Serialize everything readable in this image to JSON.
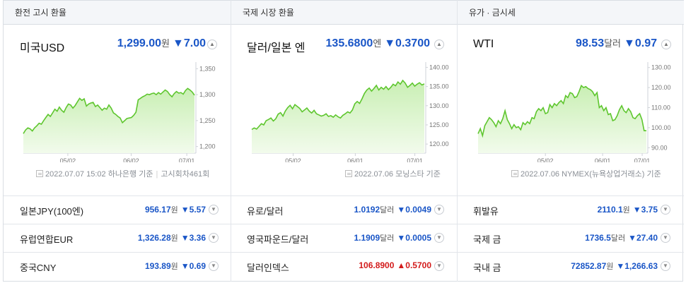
{
  "tabs": [
    "환전 고시 환율",
    "국제 시장 환율",
    "유가 · 금시세"
  ],
  "panels": [
    {
      "title": "미국USD",
      "value": "1,299.00",
      "unit": "원",
      "change": "▼7.00",
      "y_ticks": [
        "1,350",
        "1,300",
        "1,250",
        "1,200"
      ],
      "x_ticks": [
        "05/02",
        "06/02",
        "07/01"
      ],
      "footer_date": "2022.07.07 15:02 하나은행 기준",
      "footer_extra": "고시회차461회",
      "line_color": "#5ec62e",
      "chart_data": {
        "type": "area",
        "ylim": [
          1190,
          1360
        ],
        "values": [
          1225,
          1232,
          1236,
          1234,
          1230,
          1236,
          1240,
          1245,
          1243,
          1250,
          1256,
          1262,
          1258,
          1265,
          1272,
          1268,
          1276,
          1270,
          1266,
          1275,
          1282,
          1280,
          1274,
          1279,
          1286,
          1293,
          1289,
          1292,
          1278,
          1282,
          1284,
          1285,
          1277,
          1280,
          1275,
          1270,
          1274,
          1272,
          1280,
          1274,
          1265,
          1262,
          1258,
          1255,
          1246,
          1250,
          1254,
          1255,
          1256,
          1260,
          1266,
          1290,
          1293,
          1296,
          1298,
          1301,
          1300,
          1302,
          1303,
          1300,
          1304,
          1301,
          1305,
          1309,
          1306,
          1300,
          1296,
          1302,
          1306,
          1303,
          1304,
          1301,
          1308,
          1312,
          1309,
          1305,
          1299
        ]
      }
    },
    {
      "title": "달러/일본 엔",
      "value": "135.6800",
      "unit": "엔",
      "change": "▼0.3700",
      "y_ticks": [
        "140.00",
        "135.00",
        "130.00",
        "125.00",
        "120.00"
      ],
      "x_ticks": [
        "05/02",
        "06/01",
        "07/01"
      ],
      "footer_date": "2022.07.06 모닝스타 기준",
      "footer_extra": "",
      "line_color": "#5ec62e",
      "chart_data": {
        "type": "area",
        "ylim": [
          118,
          141
        ],
        "values": [
          123.8,
          124.2,
          123.9,
          124.6,
          125.3,
          125.0,
          126.1,
          126.4,
          126.8,
          126.0,
          126.6,
          127.8,
          128.2,
          127.3,
          128.6,
          129.5,
          130.1,
          129.2,
          130.3,
          129.8,
          129.3,
          128.4,
          128.9,
          129.4,
          128.6,
          128.1,
          128.8,
          127.9,
          127.6,
          127.3,
          127.5,
          127.9,
          127.2,
          127.4,
          127.0,
          127.6,
          127.1,
          126.8,
          127.5,
          127.9,
          128.4,
          128.1,
          128.9,
          130.5,
          131.1,
          130.6,
          131.8,
          133.2,
          134.1,
          134.6,
          133.8,
          134.5,
          135.3,
          134.1,
          134.8,
          134.3,
          135.0,
          134.2,
          134.8,
          135.6,
          135.2,
          136.2,
          135.6,
          136.6,
          135.9,
          134.8,
          135.3,
          135.9,
          135.1,
          135.6,
          136.0,
          135.4,
          135.7
        ]
      }
    },
    {
      "title": "WTI",
      "value": "98.53",
      "unit": "달러",
      "change": "▼0.97",
      "y_ticks": [
        "130.00",
        "120.00",
        "110.00",
        "100.00",
        "90.00"
      ],
      "x_ticks": [
        "05/02",
        "06/01",
        "07/01"
      ],
      "footer_date": "2022.07.06 NYMEX(뉴욕상업거래소) 기준",
      "footer_extra": "",
      "line_color": "#5ec62e",
      "chart_data": {
        "type": "area",
        "ylim": [
          88,
          132
        ],
        "values": [
          97.0,
          99.5,
          96.0,
          101.0,
          103.0,
          105.0,
          104.0,
          102.5,
          100.5,
          103.5,
          102.0,
          104.5,
          108.5,
          104.0,
          102.0,
          99.5,
          101.5,
          100.0,
          100.5,
          99.0,
          102.5,
          101.5,
          103.0,
          102.0,
          105.0,
          104.5,
          108.0,
          109.5,
          108.5,
          110.0,
          107.0,
          107.5,
          111.5,
          110.0,
          112.0,
          111.0,
          112.5,
          113.5,
          112.0,
          116.0,
          115.0,
          117.5,
          117.0,
          115.0,
          115.5,
          118.0,
          121.0,
          120.0,
          120.5,
          119.5,
          119.0,
          118.0,
          116.0,
          117.5,
          110.0,
          111.0,
          108.5,
          110.0,
          106.5,
          107.0,
          103.5,
          104.0,
          106.0,
          109.0,
          111.0,
          108.5,
          107.5,
          109.5,
          108.0,
          105.0,
          104.5,
          106.0,
          107.0,
          104.0,
          98.5,
          98.5
        ]
      }
    }
  ],
  "rows": [
    [
      {
        "label": "일본JPY(100엔)",
        "value": "956.17",
        "unit": "원",
        "change": "▼5.57",
        "dir": "down"
      },
      {
        "label": "유로/달러",
        "value": "1.0192",
        "unit": "달러",
        "change": "▼0.0049",
        "dir": "down"
      },
      {
        "label": "휘발유",
        "value": "2110.1",
        "unit": "원",
        "change": "▼3.75",
        "dir": "down"
      }
    ],
    [
      {
        "label": "유럽연합EUR",
        "value": "1,326.28",
        "unit": "원",
        "change": "▼3.36",
        "dir": "down"
      },
      {
        "label": "영국파운드/달러",
        "value": "1.1909",
        "unit": "달러",
        "change": "▼0.0005",
        "dir": "down"
      },
      {
        "label": "국제 금",
        "value": "1736.5",
        "unit": "달러",
        "change": "▼27.40",
        "dir": "down"
      }
    ],
    [
      {
        "label": "중국CNY",
        "value": "193.89",
        "unit": "원",
        "change": "▼0.69",
        "dir": "down"
      },
      {
        "label": "달러인덱스",
        "value": "106.8900",
        "unit": "",
        "change": "▲0.5700",
        "dir": "up"
      },
      {
        "label": "국내 금",
        "value": "72852.87",
        "unit": "원",
        "change": "▼1,266.63",
        "dir": "down"
      }
    ]
  ],
  "colors": {
    "down": "#1a56c7",
    "up": "#d31a1a",
    "line": "#5ec62e"
  },
  "icons": {
    "expand": "chevron-up-icon",
    "row_toggle": "chevron-down-icon",
    "footer": "document-icon"
  }
}
